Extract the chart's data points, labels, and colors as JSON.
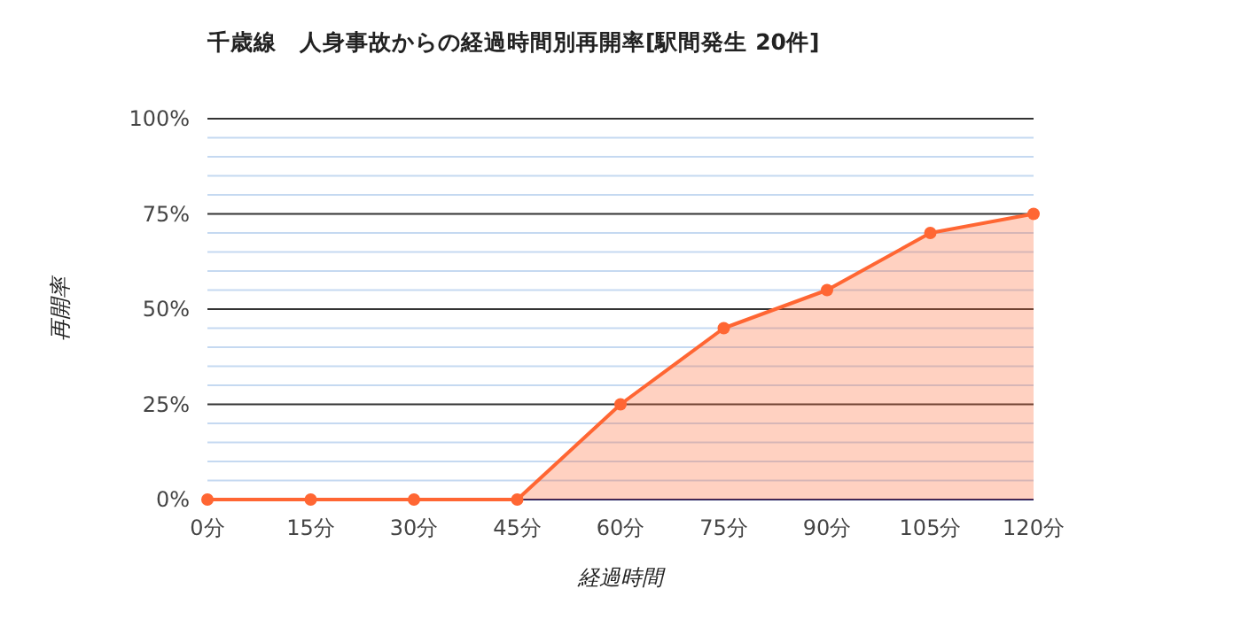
{
  "chart_data": {
    "type": "area",
    "title": "千歳線　人身事故からの経過時間別再開率[駅間発生 20件]",
    "xlabel": "経過時間",
    "ylabel": "再開率",
    "categories": [
      "0分",
      "15分",
      "30分",
      "45分",
      "60分",
      "75分",
      "90分",
      "105分",
      "120分"
    ],
    "series": [
      {
        "color": "#ff6633",
        "values": [
          0,
          0,
          0,
          0,
          25,
          45,
          55,
          70,
          75
        ]
      }
    ],
    "ylim": [
      0,
      100
    ],
    "yticks": [
      {
        "value": 0,
        "label": "0%"
      },
      {
        "value": 5,
        "label": null
      },
      {
        "value": 10,
        "label": null
      },
      {
        "value": 15,
        "label": null
      },
      {
        "value": 20,
        "label": null
      },
      {
        "value": 25,
        "label": "25%"
      },
      {
        "value": 30,
        "label": null
      },
      {
        "value": 35,
        "label": null
      },
      {
        "value": 40,
        "label": null
      },
      {
        "value": 45,
        "label": null
      },
      {
        "value": 50,
        "label": "50%"
      },
      {
        "value": 55,
        "label": null
      },
      {
        "value": 60,
        "label": null
      },
      {
        "value": 65,
        "label": null
      },
      {
        "value": 70,
        "label": null
      },
      {
        "value": 75,
        "label": "75%"
      },
      {
        "value": 80,
        "label": null
      },
      {
        "value": 85,
        "label": null
      },
      {
        "value": 90,
        "label": null
      },
      {
        "value": 95,
        "label": null
      },
      {
        "value": 100,
        "label": "100%"
      }
    ],
    "grid": "y",
    "marker": "circle"
  }
}
